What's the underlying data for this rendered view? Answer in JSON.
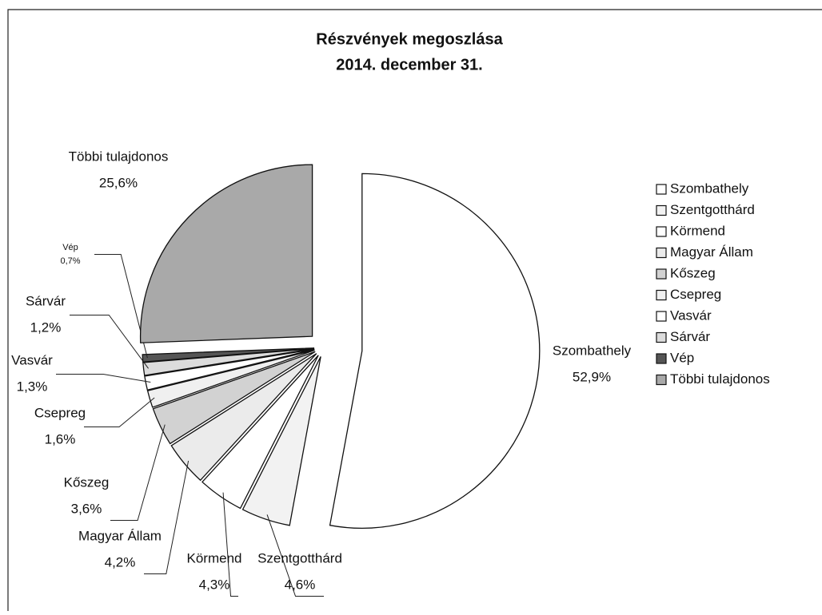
{
  "chart_data": {
    "type": "pie",
    "title": "Részvények megoszlása",
    "subtitle": "2014. december 31.",
    "categories": [
      "Szombathely",
      "Szentgotthárd",
      "Körmend",
      "Magyar Állam",
      "Kőszeg",
      "Csepreg",
      "Vasvár",
      "Sárvár",
      "Vép",
      "Többi tulajdonos"
    ],
    "values": [
      52.9,
      4.6,
      4.3,
      4.2,
      3.6,
      1.6,
      1.3,
      1.2,
      0.7,
      25.6
    ],
    "value_labels": [
      "52,9%",
      "4,6%",
      "4,3%",
      "4,2%",
      "3,6%",
      "1,6%",
      "1,3%",
      "1,2%",
      "0,7%",
      "25,6%"
    ],
    "colors": [
      "#ffffff",
      "#f2f2f2",
      "#ffffff",
      "#ebebeb",
      "#d2d2d2",
      "#f0f0f0",
      "#ffffff",
      "#dcdcdc",
      "#555555",
      "#a9a9a9"
    ],
    "legend": "right"
  }
}
